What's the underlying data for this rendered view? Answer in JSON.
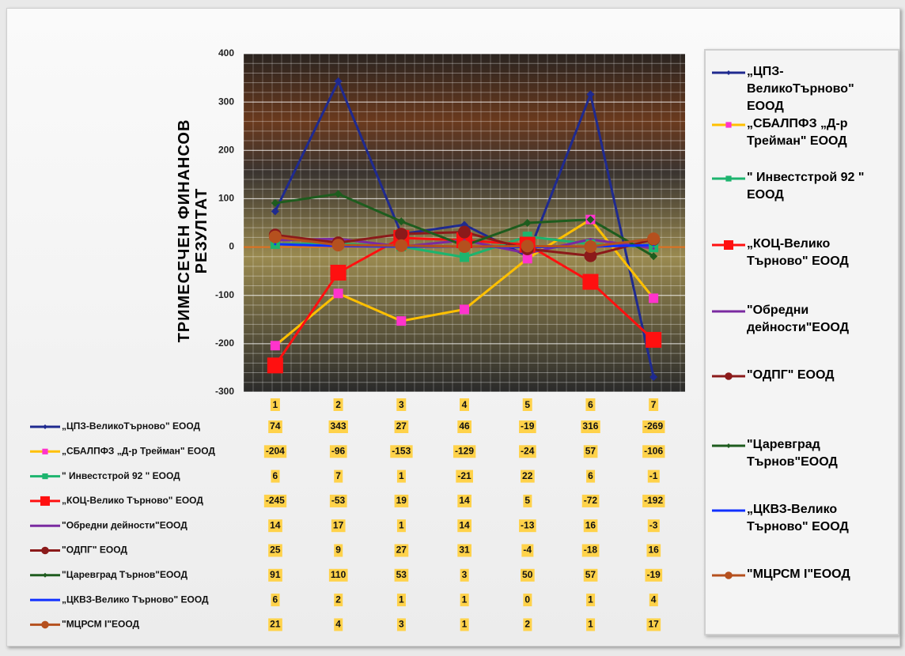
{
  "chart_data": {
    "type": "line",
    "y_label": "ТРИМЕСЕЧЕН ФИНАНСОВ РЕЗУЛТАТ",
    "categories": [
      "1",
      "2",
      "3",
      "4",
      "5",
      "6",
      "7"
    ],
    "ylim": [
      -300,
      400
    ],
    "yticks": [
      -300,
      -200,
      -100,
      0,
      100,
      200,
      300,
      400
    ],
    "grid": true,
    "legend": "right",
    "data_table": true,
    "series": [
      {
        "name": "„ЦПЗ-ВеликоТърново\" ЕООД",
        "color": "#1f2a8f",
        "marker": "diamond",
        "values": [
          74,
          343,
          27,
          46,
          -19,
          316,
          -269
        ]
      },
      {
        "name": "„СБАЛПФЗ „Д-р Трейман\" ЕООД",
        "color": "#ffc000",
        "marker": "square",
        "marker_color": "#ff33cc",
        "values": [
          -204,
          -96,
          -153,
          -129,
          -24,
          57,
          -106
        ]
      },
      {
        "name": "\" Инвестстрой 92 \" ЕООД",
        "color": "#1db46e",
        "marker": "square",
        "values": [
          6,
          7,
          1,
          -21,
          22,
          6,
          -1
        ]
      },
      {
        "name": "„КОЦ-Велико Търново\" ЕООД",
        "color": "#ff1010",
        "marker": "bigsquare",
        "values": [
          -245,
          -53,
          19,
          14,
          5,
          -72,
          -192
        ]
      },
      {
        "name": "\"Обредни дейности\"ЕООД",
        "color": "#7a2aa0",
        "marker": "none",
        "values": [
          14,
          17,
          1,
          14,
          -13,
          16,
          -3
        ]
      },
      {
        "name": "\"ОДПГ\" ЕООД",
        "color": "#8b1a1a",
        "marker": "circle",
        "values": [
          25,
          9,
          27,
          31,
          -4,
          -18,
          16
        ]
      },
      {
        "name": "\"Царевград Търнов\"ЕООД",
        "color": "#1e5c1e",
        "marker": "diamond",
        "values": [
          91,
          110,
          53,
          3,
          50,
          57,
          -19
        ]
      },
      {
        "name": "„ЦКВЗ-Велико Търново\" ЕООД",
        "color": "#1030ff",
        "marker": "none",
        "values": [
          6,
          2,
          1,
          1,
          0,
          1,
          4
        ]
      },
      {
        "name": "\"МЦРСМ I\"ЕООД",
        "color": "#b5501e",
        "marker": "circle",
        "values": [
          21,
          4,
          3,
          1,
          2,
          1,
          17
        ]
      }
    ]
  }
}
